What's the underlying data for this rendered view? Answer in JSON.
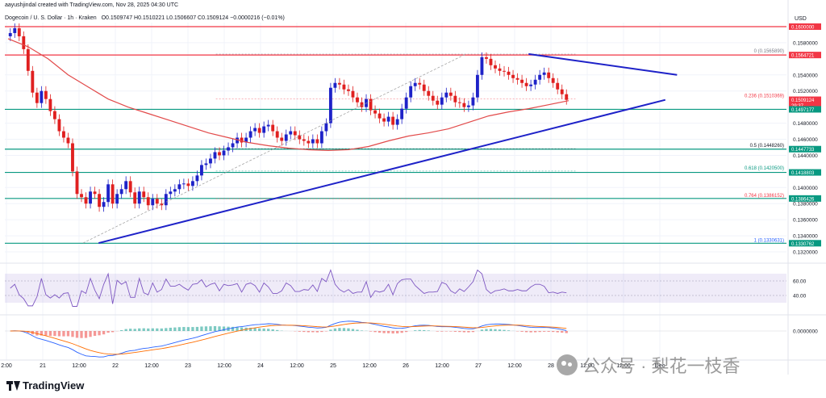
{
  "header": {
    "created_by": "aayushjindal created with TradingView.com, Nov 28, 2025 04:30 UTC",
    "symbol": "Dogecoin / U. S. Dollar · 1h · Kraken",
    "ohlc": "O0.1509747 H0.1510221 L0.1506607 C0.1509124 −0.0000216 (−0.01%)",
    "currency": "USD"
  },
  "footer": {
    "brand": "TradingView"
  },
  "watermark": {
    "text": "公众号 · 梨花一枝香"
  },
  "chart_data": [
    {
      "type": "candlestick",
      "title": "Dogecoin / U. S. Dollar · 1h · Kraken",
      "ylim": [
        0.131,
        0.1605
      ],
      "y_ticks": [
        0.158,
        0.154,
        0.152,
        0.148,
        0.146,
        0.144,
        0.14,
        0.138,
        0.136,
        0.134,
        0.132
      ],
      "x_ticks": [
        "2:00",
        "21",
        "12:00",
        "22",
        "12:00",
        "23",
        "12:00",
        "24",
        "12:00",
        "25",
        "12:00",
        "26",
        "12:00",
        "27",
        "12:00",
        "28",
        "12:00",
        "12:00",
        "Dec"
      ],
      "price_labels": [
        {
          "value": "0.1600000",
          "color": "#f23645"
        },
        {
          "value": "0.1564721",
          "color": "#f23645"
        },
        {
          "value": "0.1509124",
          "color": "#f23645",
          "sub": "29:37"
        },
        {
          "value": "0.1497177",
          "color": "#089981"
        },
        {
          "value": "0.1447733",
          "color": "#089981"
        },
        {
          "value": "0.1418803",
          "color": "#089981"
        },
        {
          "value": "0.1386426",
          "color": "#089981"
        },
        {
          "value": "0.1330762",
          "color": "#089981"
        }
      ],
      "horizontal_levels": [
        {
          "value": 0.16,
          "color": "#f23645"
        },
        {
          "value": 0.1564721,
          "color": "#f23645"
        },
        {
          "value": 0.1497177,
          "color": "#089981"
        },
        {
          "value": 0.1447733,
          "color": "#089981"
        },
        {
          "value": 0.1418803,
          "color": "#089981"
        },
        {
          "value": 0.1386426,
          "color": "#089981"
        },
        {
          "value": 0.1330762,
          "color": "#089981"
        }
      ],
      "fibonacci": [
        {
          "label": "0 (0.1565890)",
          "value": 0.156589
        },
        {
          "label": "0.236 (0.1510369)",
          "value": 0.1510369
        },
        {
          "label": "0.5 (0.1448260)",
          "value": 0.144826
        },
        {
          "label": "0.618 (0.1420500)",
          "value": 0.14205
        },
        {
          "label": "0.764 (0.1386152)",
          "value": 0.1386152
        },
        {
          "label": "1 (0.1330631)",
          "value": 0.1330631
        }
      ],
      "trendlines": [
        {
          "name": "support",
          "from": [
            0.12,
            0.1331
          ],
          "to": [
            0.845,
            0.1509
          ],
          "color": "#1e22c8"
        },
        {
          "name": "resistance",
          "from": [
            0.67,
            0.1566
          ],
          "to": [
            0.86,
            0.154
          ],
          "color": "#1e22c8"
        }
      ],
      "close": [
        0.1592,
        0.1598,
        0.1588,
        0.1572,
        0.1545,
        0.1518,
        0.1505,
        0.152,
        0.151,
        0.1495,
        0.1485,
        0.147,
        0.1462,
        0.1455,
        0.142,
        0.1392,
        0.1388,
        0.138,
        0.1395,
        0.1392,
        0.1376,
        0.1382,
        0.1404,
        0.138,
        0.1392,
        0.1398,
        0.1408,
        0.1394,
        0.138,
        0.1395,
        0.1388,
        0.1378,
        0.1386,
        0.138,
        0.1378,
        0.1392,
        0.1395,
        0.1398,
        0.1404,
        0.1405,
        0.1402,
        0.1408,
        0.1415,
        0.1428,
        0.143,
        0.1436,
        0.1444,
        0.144,
        0.1446,
        0.145,
        0.1455,
        0.1462,
        0.1456,
        0.1462,
        0.147,
        0.1474,
        0.1468,
        0.1476,
        0.1478,
        0.147,
        0.1462,
        0.1458,
        0.1466,
        0.147,
        0.1465,
        0.146,
        0.1458,
        0.1455,
        0.146,
        0.1455,
        0.147,
        0.148,
        0.1524,
        0.153,
        0.1528,
        0.1522,
        0.152,
        0.1512,
        0.1506,
        0.15,
        0.151,
        0.1496,
        0.1492,
        0.1486,
        0.1482,
        0.1488,
        0.1478,
        0.1485,
        0.1498,
        0.1512,
        0.1526,
        0.153,
        0.1528,
        0.152,
        0.1514,
        0.1508,
        0.1503,
        0.1512,
        0.1518,
        0.1514,
        0.1506,
        0.1505,
        0.15,
        0.1502,
        0.1512,
        0.154,
        0.1562,
        0.156,
        0.1552,
        0.1548,
        0.1545,
        0.1544,
        0.154,
        0.1536,
        0.1534,
        0.153,
        0.1526,
        0.1528,
        0.1534,
        0.154,
        0.1543,
        0.1536,
        0.153,
        0.1522,
        0.1516,
        0.1509
      ],
      "ma": [
        0.1585,
        0.1575,
        0.156,
        0.154,
        0.1525,
        0.151,
        0.15,
        0.1492,
        0.1484,
        0.1476,
        0.1468,
        0.1462,
        0.1456,
        0.1452,
        0.1449,
        0.1447,
        0.1446,
        0.1447,
        0.1451,
        0.1458,
        0.1464,
        0.1468,
        0.1473,
        0.1481,
        0.1489,
        0.1494,
        0.1498,
        0.1503,
        0.1508
      ],
      "rsi": {
        "levels": [
          60.0,
          40.0
        ],
        "range": [
          20,
          80
        ]
      },
      "macd": {
        "zero_label": "0.0000000"
      }
    }
  ]
}
